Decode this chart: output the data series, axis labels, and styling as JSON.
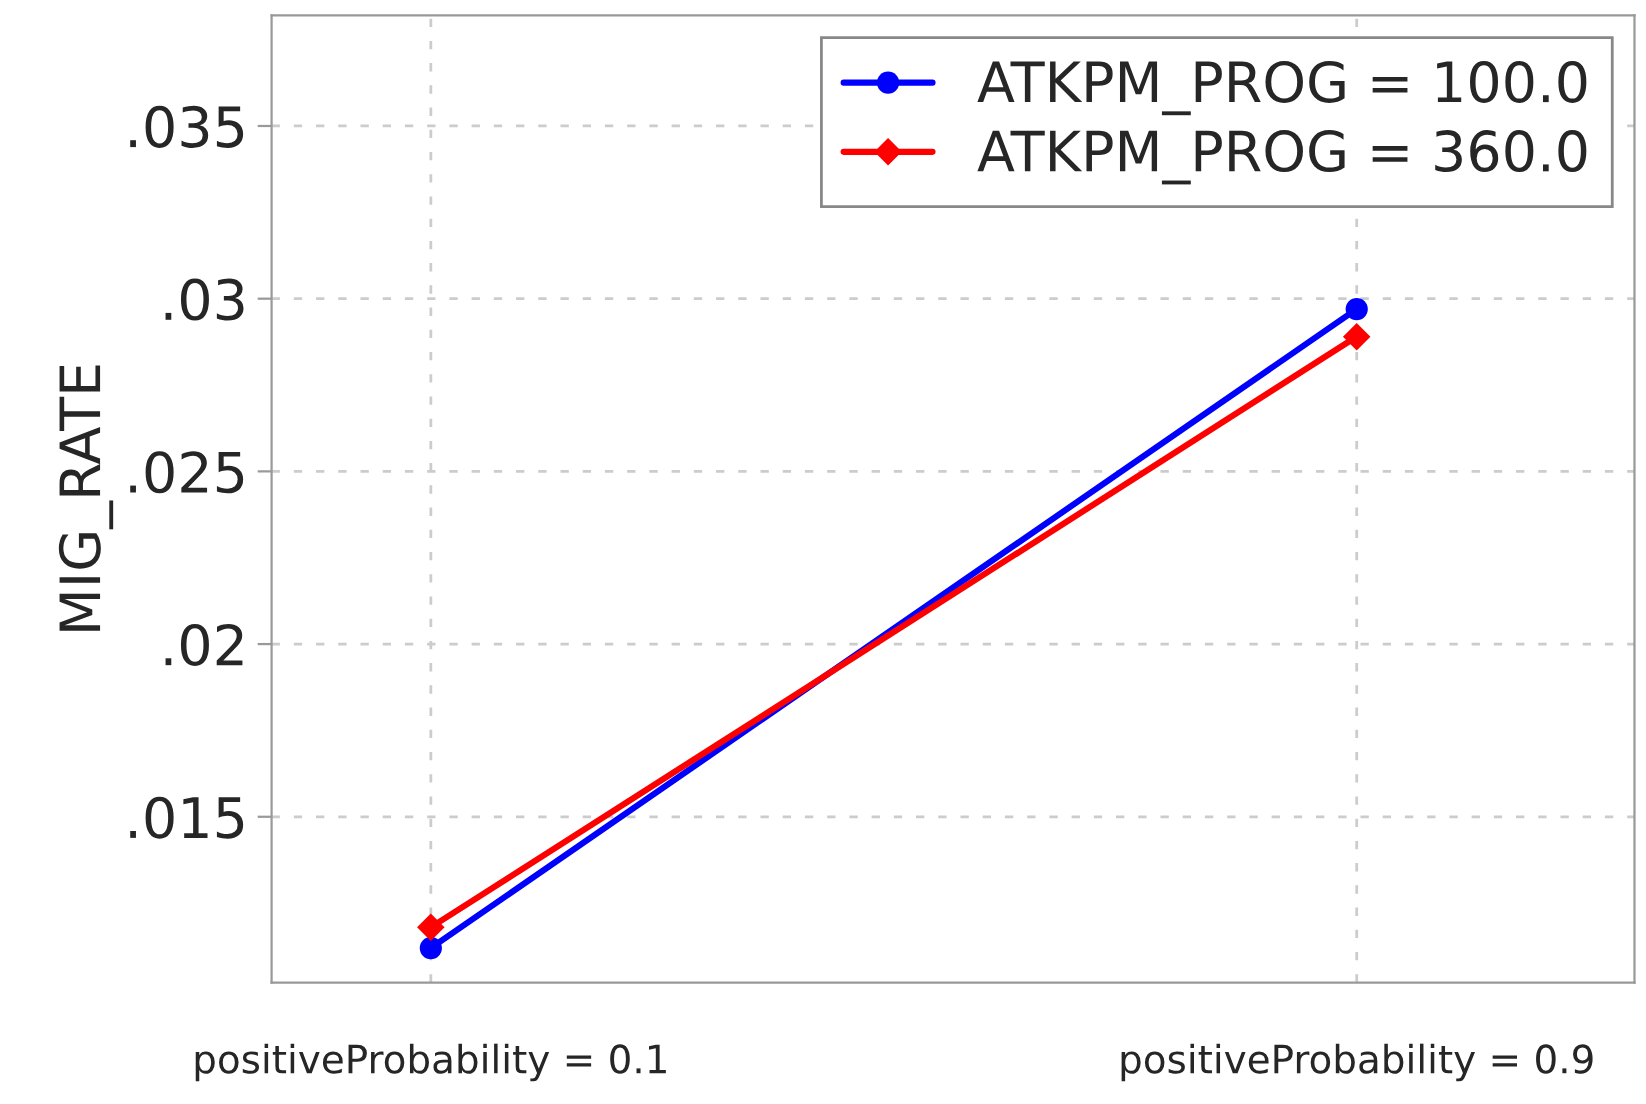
{
  "chart_data": {
    "type": "line",
    "ylabel": "MIG_RATE",
    "categories": [
      "positiveProbability = 0.1",
      "positiveProbability = 0.9"
    ],
    "series": [
      {
        "name": "ATKPM_PROG = 100.0",
        "color": "#0000ff",
        "marker": "circle",
        "values": [
          0.0112,
          0.0297
        ]
      },
      {
        "name": "ATKPM_PROG = 360.0",
        "color": "#ff0000",
        "marker": "diamond",
        "values": [
          0.0118,
          0.0289
        ]
      }
    ],
    "ylim": [
      0.0102,
      0.0382
    ],
    "yticks": [
      {
        "value": 0.015,
        "label": ".015"
      },
      {
        "value": 0.02,
        "label": ".02"
      },
      {
        "value": 0.025,
        "label": ".025"
      },
      {
        "value": 0.03,
        "label": ".03"
      },
      {
        "value": 0.035,
        "label": ".035"
      }
    ],
    "grid": true,
    "legend": "top right",
    "line_style": "solid"
  }
}
